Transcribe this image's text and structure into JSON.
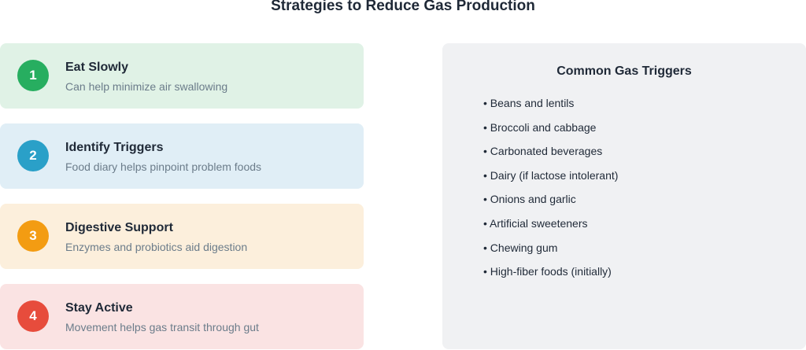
{
  "title": "Strategies to Reduce Gas Production",
  "strategies": [
    {
      "number": "1",
      "title": "Eat Slowly",
      "subtitle": "Can help minimize air swallowing",
      "bg": "#e0f2e6",
      "color": "#27ae60"
    },
    {
      "number": "2",
      "title": "Identify Triggers",
      "subtitle": "Food diary helps pinpoint problem foods",
      "bg": "#e0eef6",
      "color": "#2aa0c8"
    },
    {
      "number": "3",
      "title": "Digestive Support",
      "subtitle": "Enzymes and probiotics aid digestion",
      "bg": "#fcefdc",
      "color": "#f39c12"
    },
    {
      "number": "4",
      "title": "Stay Active",
      "subtitle": "Movement helps gas transit through gut",
      "bg": "#fae3e3",
      "color": "#e74c3c"
    }
  ],
  "triggers": {
    "title": "Common Gas Triggers",
    "items": [
      "• Beans and lentils",
      "• Broccoli and cabbage",
      "• Carbonated beverages",
      "• Dairy (if lactose intolerant)",
      "• Onions and garlic",
      "• Artificial sweeteners",
      "• Chewing gum",
      "• High-fiber foods (initially)"
    ]
  }
}
